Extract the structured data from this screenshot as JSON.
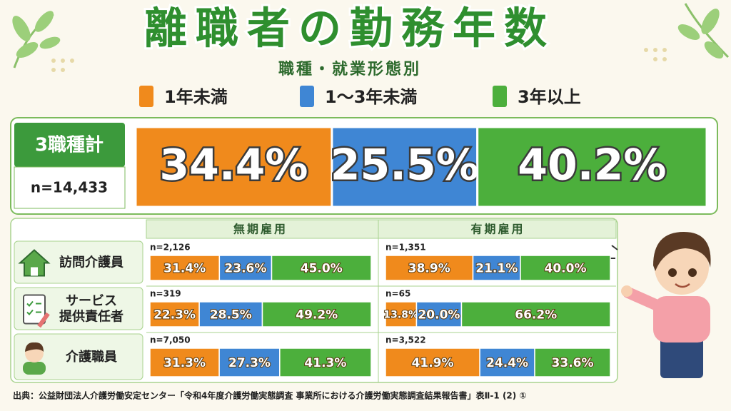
{
  "title": "離職者の勤務年数",
  "subtitle": "職種・就業形態別",
  "chart_data": {
    "type": "bar",
    "stacked": true,
    "series": [
      {
        "name": "1年未満",
        "color": "#f08a1c"
      },
      {
        "name": "1～3年未満",
        "color": "#3f86d4"
      },
      {
        "name": "3年以上",
        "color": "#4caf3c"
      }
    ],
    "total": {
      "label": "3職種計",
      "n": "n=14,433",
      "values": [
        34.4,
        25.5,
        40.2
      ],
      "value_labels": [
        "34.4%",
        "25.5%",
        "40.2%"
      ]
    },
    "columns": [
      "無期雇用",
      "有期雇用"
    ],
    "rows": [
      {
        "label_lines": [
          "訪問介護員"
        ],
        "cells": [
          {
            "n": "n=2,126",
            "values": [
              31.4,
              23.6,
              45.0
            ],
            "value_labels": [
              "31.4%",
              "23.6%",
              "45.0%"
            ]
          },
          {
            "n": "n=1,351",
            "values": [
              38.9,
              21.1,
              40.0
            ],
            "value_labels": [
              "38.9%",
              "21.1%",
              "40.0%"
            ]
          }
        ]
      },
      {
        "label_lines": [
          "サービス",
          "提供責任者"
        ],
        "cells": [
          {
            "n": "n=319",
            "values": [
              22.3,
              28.5,
              49.2
            ],
            "value_labels": [
              "22.3%",
              "28.5%",
              "49.2%"
            ]
          },
          {
            "n": "n=65",
            "values": [
              13.8,
              20.0,
              66.2
            ],
            "value_labels": [
              "13.8%",
              "20.0%",
              "66.2%"
            ]
          }
        ]
      },
      {
        "label_lines": [
          "介護職員"
        ],
        "cells": [
          {
            "n": "n=7,050",
            "values": [
              31.3,
              27.3,
              41.3
            ],
            "value_labels": [
              "31.3%",
              "27.3%",
              "41.3%"
            ]
          },
          {
            "n": "n=3,522",
            "values": [
              41.9,
              24.4,
              33.6
            ],
            "value_labels": [
              "41.9%",
              "24.4%",
              "33.6%"
            ]
          }
        ]
      }
    ]
  },
  "source": "出典：公益財団法人介護労働安定センター「令和4年度介護労働実態調査 事業所における介護労働実態調査結果報告書」表Ⅱ-1 (2) ①"
}
